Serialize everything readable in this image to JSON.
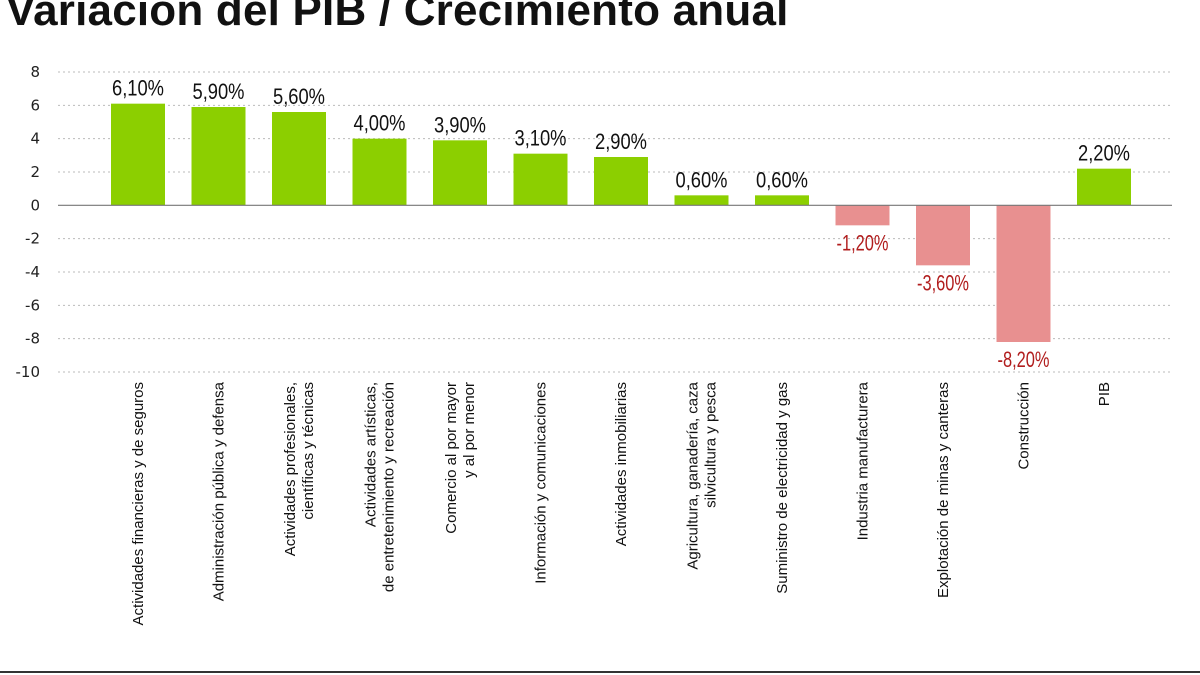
{
  "chart_data": {
    "type": "bar",
    "title": "Variación del PIB / Crecimiento anual",
    "categories": [
      [
        "Actividades financieras y de seguros"
      ],
      [
        "Administración pública y defensa"
      ],
      [
        "Actividades profesionales,",
        "científicas y técnicas"
      ],
      [
        "Actividades artísticas,",
        "de entretenimiento y recreación"
      ],
      [
        "Comercio al por mayor",
        "y al por menor"
      ],
      [
        "Información y comunicaciones"
      ],
      [
        "Actividades inmobiliarias"
      ],
      [
        "Agricultura, ganadería, caza",
        "silvicultura y pesca"
      ],
      [
        "Suministro de electricidad y gas"
      ],
      [
        "Industria manufacturera"
      ],
      [
        "Explotación de minas y canteras"
      ],
      [
        "Construcción"
      ],
      [
        "PIB"
      ]
    ],
    "values": [
      6.1,
      5.9,
      5.6,
      4.0,
      3.9,
      3.1,
      2.9,
      0.6,
      0.6,
      -1.2,
      -3.6,
      -8.2,
      2.2
    ],
    "value_labels": [
      "6,10%",
      "5,90%",
      "5,60%",
      "4,00%",
      "3,90%",
      "3,10%",
      "2,90%",
      "0,60%",
      "0,60%",
      "-1,20%",
      "-3,60%",
      "-8,20%",
      "2,20%"
    ],
    "y_ticks": [
      8,
      6,
      4,
      2,
      0,
      -2,
      -4,
      -6,
      -8,
      -10
    ],
    "ylim": [
      -10,
      8
    ],
    "grid": true,
    "colors": {
      "positive": "#8ccf00",
      "negative": "#e89090",
      "negative_label": "#b11d1d",
      "positive_label": "#111111",
      "grid": "#bbbbbb",
      "axis": "#777777"
    }
  }
}
